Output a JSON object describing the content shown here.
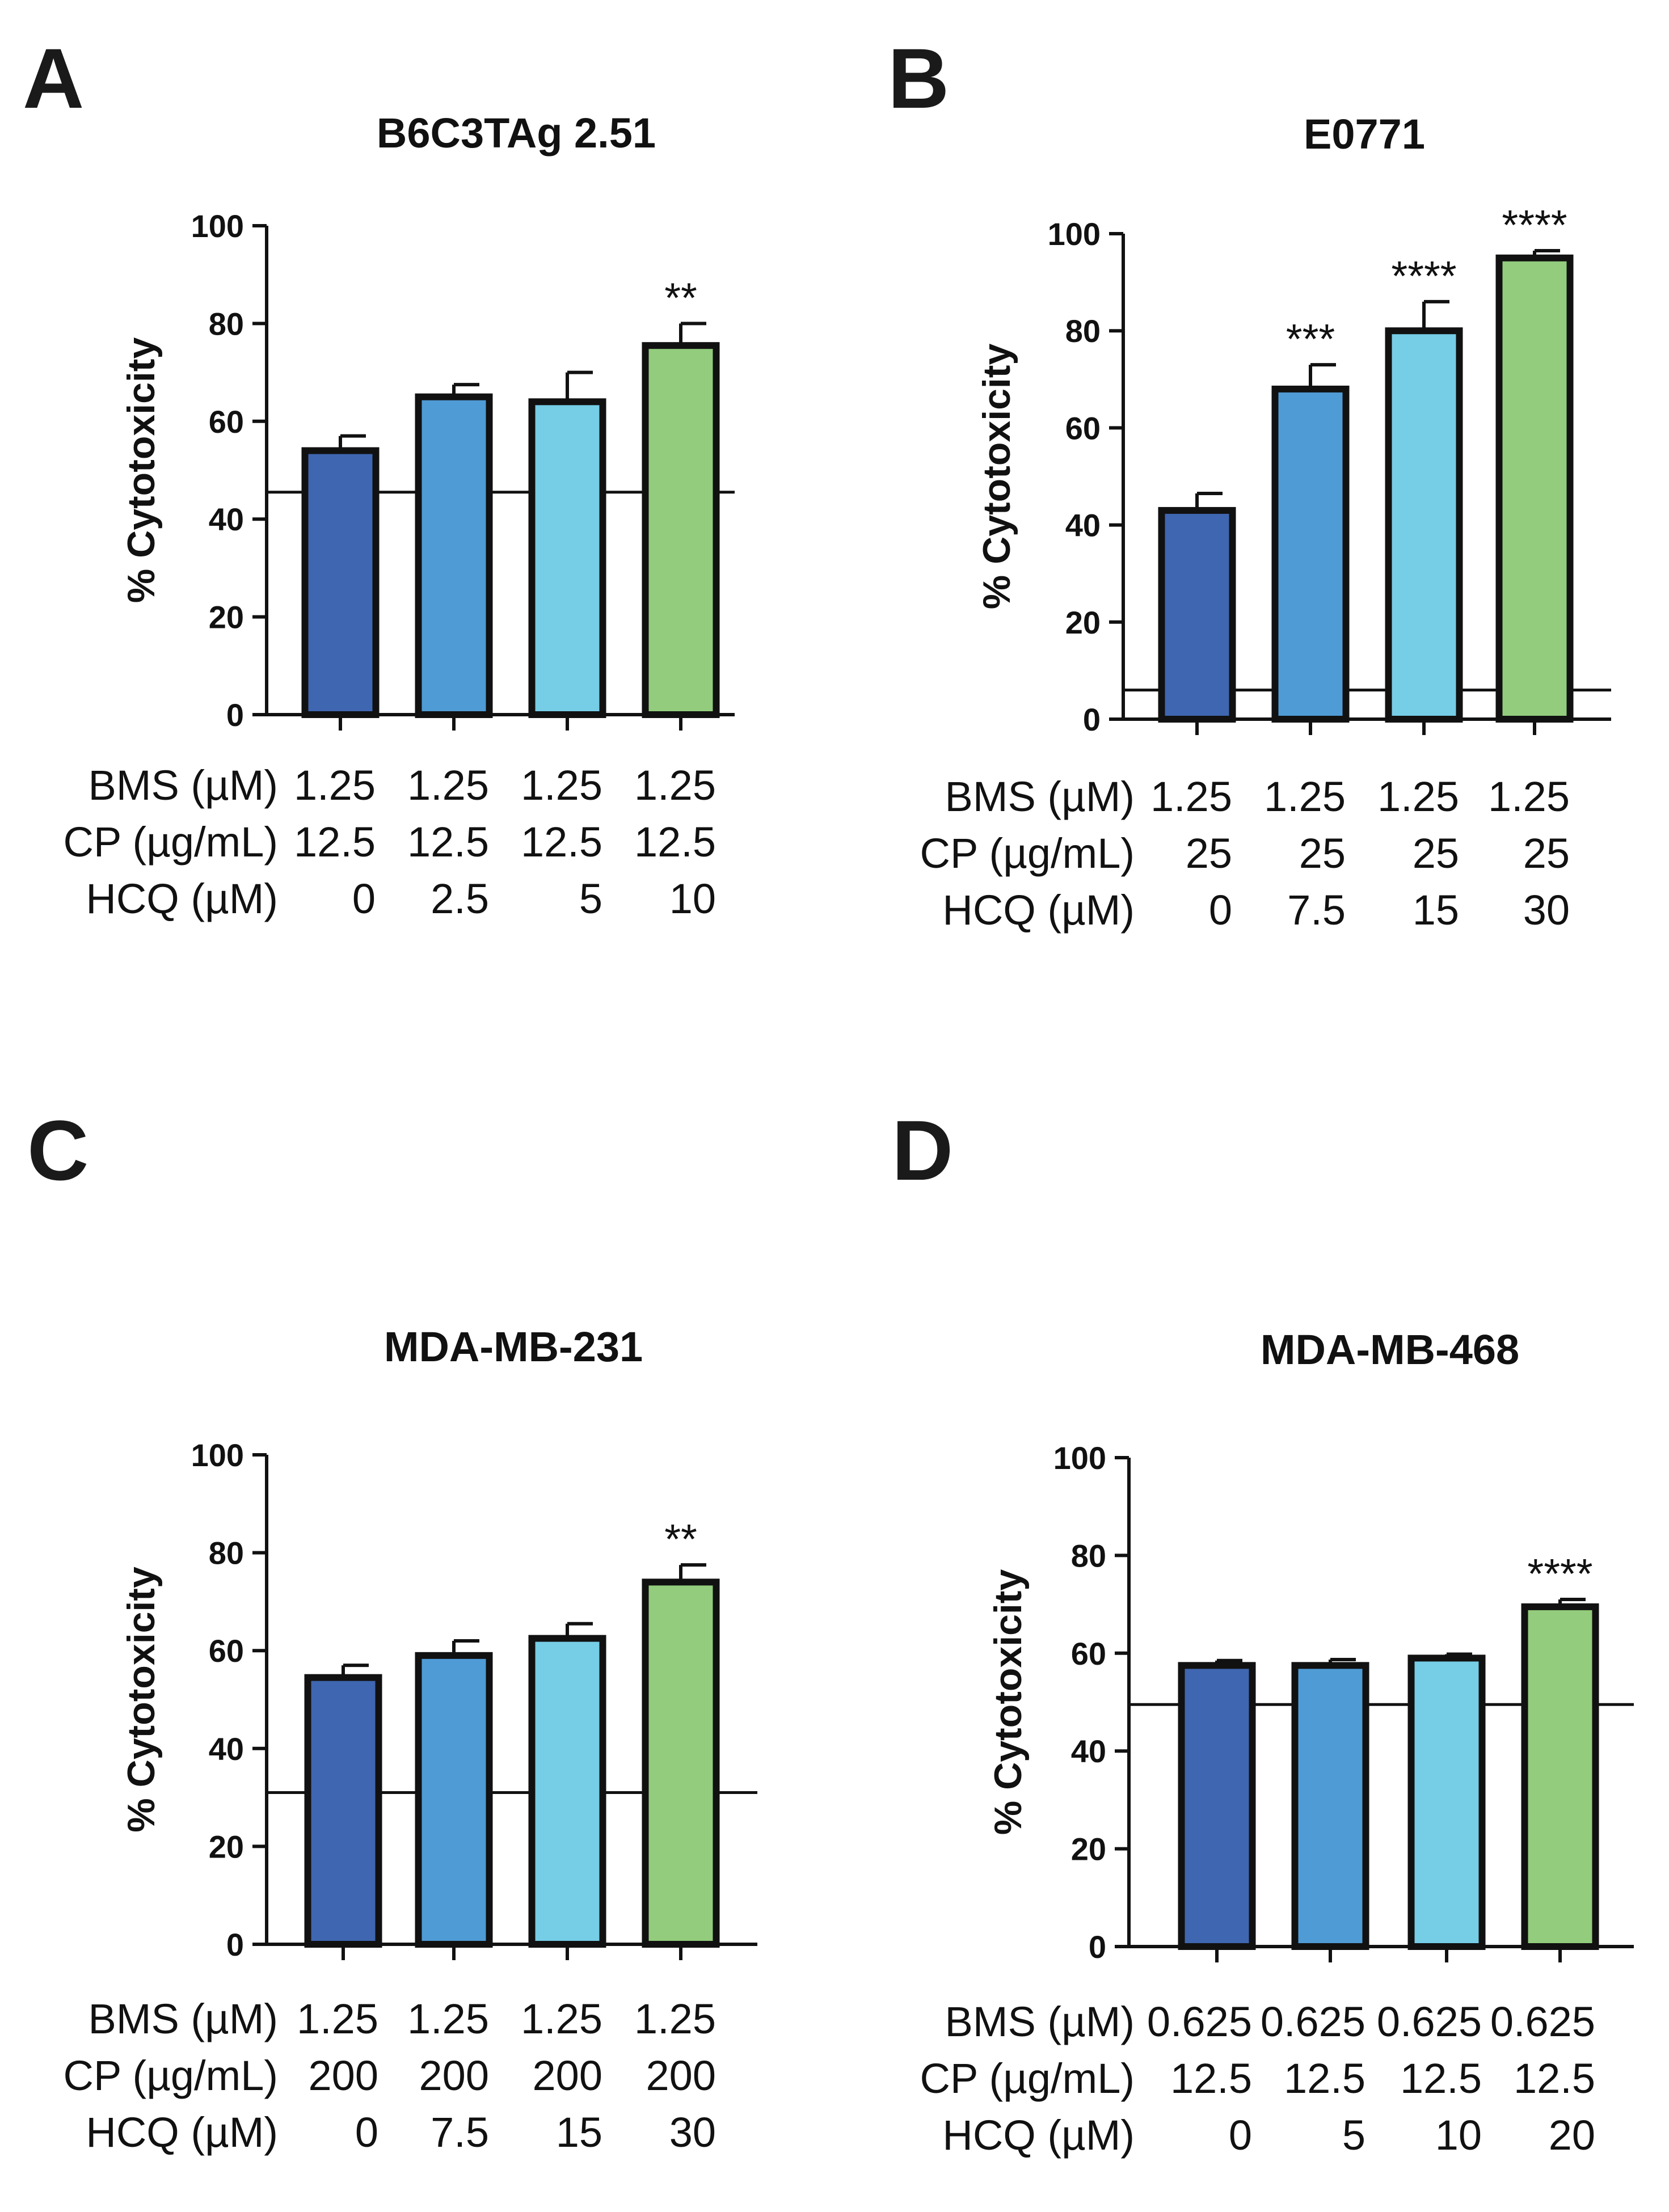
{
  "chart_data": [
    {
      "type": "bar",
      "panel": "A",
      "title": "B6C3TAg 2.51",
      "ylabel": "% Cytotoxicity",
      "ylim": [
        0,
        100
      ],
      "yticks": [
        "0",
        "20",
        "40",
        "60",
        "80",
        "100"
      ],
      "baseline": 45.5,
      "colors": [
        "#3f66b0",
        "#4f9bd5",
        "#76cde6",
        "#92cc7c"
      ],
      "values": [
        54,
        65,
        64,
        75.5
      ],
      "errors": [
        3,
        2.5,
        6,
        4.5
      ],
      "significance": [
        "",
        "",
        "",
        "**"
      ],
      "conditions": [
        {
          "label": "BMS (µM)",
          "values": [
            "1.25",
            "1.25",
            "1.25",
            "1.25"
          ]
        },
        {
          "label": "CP (µg/mL)",
          "values": [
            "12.5",
            "12.5",
            "12.5",
            "12.5"
          ]
        },
        {
          "label": "HCQ (µM)",
          "values": [
            "0",
            "2.5",
            "5",
            "10"
          ]
        }
      ]
    },
    {
      "type": "bar",
      "panel": "B",
      "title": "E0771",
      "ylabel": "% Cytotoxicity",
      "ylim": [
        0,
        100
      ],
      "yticks": [
        "0",
        "20",
        "40",
        "60",
        "80",
        "100"
      ],
      "baseline": 6,
      "colors": [
        "#3f66b0",
        "#4f9bd5",
        "#76cde6",
        "#92cc7c"
      ],
      "values": [
        43,
        68,
        80,
        95
      ],
      "errors": [
        3.5,
        5,
        6,
        1.5
      ],
      "significance": [
        "",
        "***",
        "****",
        "****"
      ],
      "conditions": [
        {
          "label": "BMS (µM)",
          "values": [
            "1.25",
            "1.25",
            "1.25",
            "1.25"
          ]
        },
        {
          "label": "CP (µg/mL)",
          "values": [
            "25",
            "25",
            "25",
            "25"
          ]
        },
        {
          "label": "HCQ (µM)",
          "values": [
            "0",
            "7.5",
            "15",
            "30"
          ]
        }
      ]
    },
    {
      "type": "bar",
      "panel": "C",
      "title": "MDA-MB-231",
      "ylabel": "% Cytotoxicity",
      "ylim": [
        0,
        100
      ],
      "yticks": [
        "0",
        "20",
        "40",
        "60",
        "80",
        "100"
      ],
      "baseline": 31,
      "colors": [
        "#3f66b0",
        "#4f9bd5",
        "#76cde6",
        "#92cc7c"
      ],
      "values": [
        54.5,
        59,
        62.5,
        74
      ],
      "errors": [
        2.5,
        3,
        3,
        3.5
      ],
      "significance": [
        "",
        "",
        "",
        "**"
      ],
      "conditions": [
        {
          "label": "BMS (µM)",
          "values": [
            "1.25",
            "1.25",
            "1.25",
            "1.25"
          ]
        },
        {
          "label": "CP (µg/mL)",
          "values": [
            "200",
            "200",
            "200",
            "200"
          ]
        },
        {
          "label": "HCQ (µM)",
          "values": [
            "0",
            "7.5",
            "15",
            "30"
          ]
        }
      ]
    },
    {
      "type": "bar",
      "panel": "D",
      "title": "MDA-MB-468",
      "ylabel": "% Cytotoxicity",
      "ylim": [
        0,
        100
      ],
      "yticks": [
        "0",
        "20",
        "40",
        "60",
        "80",
        "100"
      ],
      "baseline": 49.5,
      "colors": [
        "#3f66b0",
        "#4f9bd5",
        "#76cde6",
        "#92cc7c"
      ],
      "values": [
        57.5,
        57.5,
        59,
        69.5
      ],
      "errors": [
        1,
        1.2,
        0.8,
        1.5
      ],
      "significance": [
        "",
        "",
        "",
        "****"
      ],
      "conditions": [
        {
          "label": "BMS (µM)",
          "values": [
            "0.625",
            "0.625",
            "0.625",
            "0.625"
          ]
        },
        {
          "label": "CP (µg/mL)",
          "values": [
            "12.5",
            "12.5",
            "12.5",
            "12.5"
          ]
        },
        {
          "label": "HCQ (µM)",
          "values": [
            "0",
            "5",
            "10",
            "20"
          ]
        }
      ]
    }
  ]
}
